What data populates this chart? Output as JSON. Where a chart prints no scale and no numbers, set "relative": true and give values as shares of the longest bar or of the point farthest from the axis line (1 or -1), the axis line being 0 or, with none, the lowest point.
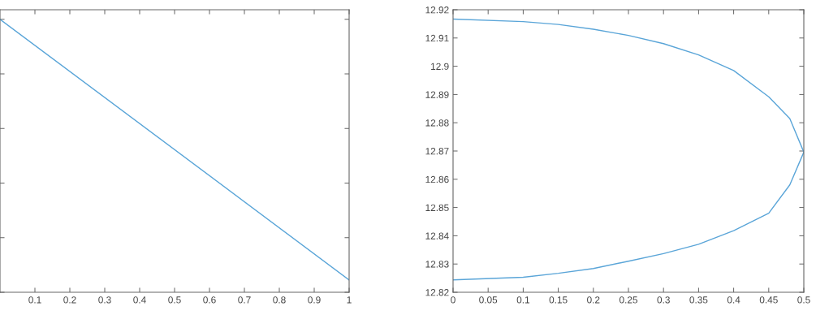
{
  "chart_data": [
    {
      "type": "line",
      "relative": true,
      "tick_labels": "x",
      "x": [
        0,
        1
      ],
      "xlim": [
        0,
        1
      ],
      "xticks": [
        0.1,
        0.2,
        0.3,
        0.4,
        0.5,
        0.6,
        0.7,
        0.8,
        0.9,
        1
      ],
      "series": [
        {
          "color": "#5aa5d8",
          "values": [
            1,
            0.045
          ]
        }
      ]
    },
    {
      "type": "line",
      "xlim": [
        0,
        0.5
      ],
      "xticks": [
        0,
        0.05,
        0.1,
        0.15,
        0.2,
        0.25,
        0.3,
        0.35,
        0.4,
        0.45,
        0.5
      ],
      "ylim": [
        12.82,
        12.92
      ],
      "yticks": [
        12.82,
        12.83,
        12.84,
        12.85,
        12.86,
        12.87,
        12.88,
        12.89,
        12.9,
        12.91,
        12.92
      ],
      "series": [
        {
          "color": "#5aa5d8",
          "x": [
            0,
            0.1,
            0.15,
            0.2,
            0.25,
            0.3,
            0.35,
            0.4,
            0.45,
            0.48,
            0.5,
            0.48,
            0.45,
            0.4,
            0.35,
            0.3,
            0.25,
            0.2,
            0.15,
            0.1,
            0
          ],
          "values": [
            12.9167,
            12.9158,
            12.9148,
            12.9131,
            12.9109,
            12.908,
            12.904,
            12.8985,
            12.8892,
            12.8815,
            12.8696,
            12.858,
            12.848,
            12.8418,
            12.837,
            12.8337,
            12.831,
            12.8284,
            12.8267,
            12.8253,
            12.8244
          ]
        }
      ]
    }
  ]
}
